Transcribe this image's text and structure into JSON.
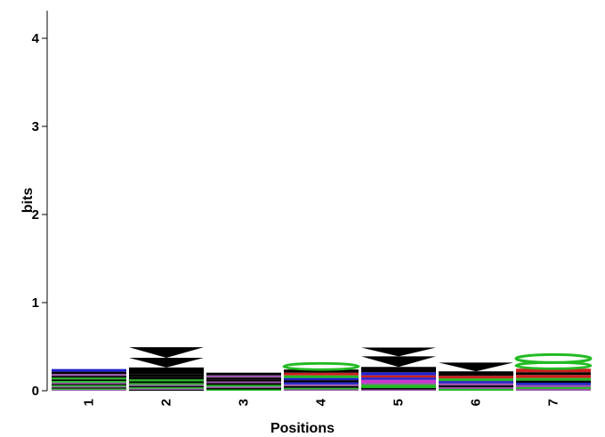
{
  "chart_data": {
    "type": "sequence-logo",
    "xlabel": "Positions",
    "ylabel": "bits",
    "ylim": [
      0,
      4.3
    ],
    "y_ticks": [
      "0",
      "1",
      "2",
      "3",
      "4"
    ],
    "positions": [
      "1",
      "2",
      "3",
      "4",
      "5",
      "6",
      "7"
    ],
    "grid": false,
    "colors": {
      "black": "#000000",
      "green": "#22bb22",
      "blue": "#1f1fcc",
      "red": "#cc1f1f",
      "magenta": "#cc33cc",
      "purple": "#9955aa"
    },
    "stacks": [
      {
        "position": "1",
        "letters": [
          {
            "color": "purple",
            "bits": 0.012
          },
          {
            "color": "green",
            "bits": 0.012
          },
          {
            "color": "black",
            "bits": 0.012
          },
          {
            "color": "purple",
            "bits": 0.012
          },
          {
            "color": "green",
            "bits": 0.015
          },
          {
            "color": "black",
            "bits": 0.015
          },
          {
            "color": "purple",
            "bits": 0.015
          },
          {
            "color": "green",
            "bits": 0.018
          },
          {
            "color": "black",
            "bits": 0.018
          },
          {
            "color": "green",
            "bits": 0.02
          },
          {
            "color": "black",
            "bits": 0.02
          },
          {
            "color": "purple",
            "bits": 0.022
          },
          {
            "color": "black",
            "bits": 0.025
          },
          {
            "color": "blue",
            "bits": 0.03
          }
        ]
      },
      {
        "position": "2",
        "letters": [
          {
            "color": "black",
            "bits": 0.012
          },
          {
            "color": "purple",
            "bits": 0.012
          },
          {
            "color": "green",
            "bits": 0.015
          },
          {
            "color": "black",
            "bits": 0.015
          },
          {
            "color": "purple",
            "bits": 0.015
          },
          {
            "color": "green",
            "bits": 0.018
          },
          {
            "color": "black",
            "bits": 0.02
          },
          {
            "color": "green",
            "bits": 0.022
          },
          {
            "color": "black",
            "bits": 0.025
          },
          {
            "color": "black",
            "bits": 0.03
          },
          {
            "color": "black",
            "bits": 0.08
          },
          {
            "color": "black",
            "bits": 0.11
          },
          {
            "color": "black",
            "bits": 0.12
          }
        ]
      },
      {
        "position": "3",
        "letters": [
          {
            "color": "green",
            "bits": 0.015
          },
          {
            "color": "black",
            "bits": 0.015
          },
          {
            "color": "purple",
            "bits": 0.018
          },
          {
            "color": "green",
            "bits": 0.018
          },
          {
            "color": "black",
            "bits": 0.02
          },
          {
            "color": "purple",
            "bits": 0.02
          },
          {
            "color": "black",
            "bits": 0.022
          },
          {
            "color": "black",
            "bits": 0.022
          },
          {
            "color": "purple",
            "bits": 0.025
          },
          {
            "color": "black",
            "bits": 0.03
          }
        ]
      },
      {
        "position": "4",
        "letters": [
          {
            "color": "purple",
            "bits": 0.015
          },
          {
            "color": "green",
            "bits": 0.018
          },
          {
            "color": "black",
            "bits": 0.02
          },
          {
            "color": "purple",
            "bits": 0.02
          },
          {
            "color": "blue",
            "bits": 0.022
          },
          {
            "color": "black",
            "bits": 0.025
          },
          {
            "color": "blue",
            "bits": 0.025
          },
          {
            "color": "green",
            "bits": 0.03
          },
          {
            "color": "red",
            "bits": 0.03
          },
          {
            "color": "black",
            "bits": 0.035
          },
          {
            "color": "green",
            "bits": 0.07
          }
        ]
      },
      {
        "position": "5",
        "letters": [
          {
            "color": "purple",
            "bits": 0.015
          },
          {
            "color": "black",
            "bits": 0.015
          },
          {
            "color": "green",
            "bits": 0.04
          },
          {
            "color": "purple",
            "bits": 0.02
          },
          {
            "color": "magenta",
            "bits": 0.035
          },
          {
            "color": "blue",
            "bits": 0.025
          },
          {
            "color": "red",
            "bits": 0.025
          },
          {
            "color": "blue",
            "bits": 0.035
          },
          {
            "color": "black",
            "bits": 0.06
          },
          {
            "color": "black",
            "bits": 0.12
          },
          {
            "color": "black",
            "bits": 0.1
          }
        ]
      },
      {
        "position": "6",
        "letters": [
          {
            "color": "green",
            "bits": 0.02
          },
          {
            "color": "purple",
            "bits": 0.02
          },
          {
            "color": "black",
            "bits": 0.02
          },
          {
            "color": "purple",
            "bits": 0.025
          },
          {
            "color": "blue",
            "bits": 0.025
          },
          {
            "color": "green",
            "bits": 0.03
          },
          {
            "color": "red",
            "bits": 0.03
          },
          {
            "color": "black",
            "bits": 0.05
          },
          {
            "color": "black",
            "bits": 0.1
          }
        ]
      },
      {
        "position": "7",
        "letters": [
          {
            "color": "purple",
            "bits": 0.02
          },
          {
            "color": "green",
            "bits": 0.02
          },
          {
            "color": "purple",
            "bits": 0.025
          },
          {
            "color": "blue",
            "bits": 0.025
          },
          {
            "color": "black",
            "bits": 0.025
          },
          {
            "color": "green",
            "bits": 0.03
          },
          {
            "color": "red",
            "bits": 0.035
          },
          {
            "color": "black",
            "bits": 0.03
          },
          {
            "color": "red",
            "bits": 0.04
          },
          {
            "color": "green",
            "bits": 0.07
          },
          {
            "color": "green",
            "bits": 0.09
          }
        ]
      }
    ]
  }
}
